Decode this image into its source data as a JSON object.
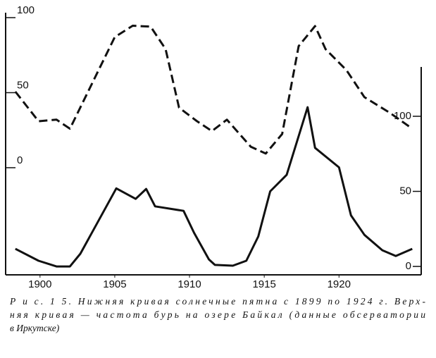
{
  "chart_data": {
    "type": "line",
    "xlim": [
      1897.7,
      1925.5
    ],
    "xticks": [
      1900,
      1905,
      1910,
      1915,
      1920
    ],
    "ylim": [
      -71.4,
      103.3
    ],
    "yticks": [
      0,
      50,
      100
    ],
    "y2lim": [
      -5.6,
      169
    ],
    "y2ticks": [
      0,
      50,
      100
    ],
    "series": [
      {
        "color": "#111111",
        "dash": true,
        "x": [
          1898.35,
          1899.9,
          1901.1,
          1902.0,
          1905.0,
          1906.2,
          1907.4,
          1908.4,
          1909.3,
          1910.5,
          1911.5,
          1912.5,
          1914.1,
          1915.1,
          1916.2,
          1917.3,
          1918.4,
          1919.1,
          1920.5,
          1921.7,
          1923.4,
          1924.9
        ],
        "values": [
          50.7,
          31,
          32,
          26,
          87,
          94.6,
          94,
          79,
          40,
          31,
          24.4,
          32,
          14,
          9.4,
          22.5,
          81,
          94.4,
          79,
          65,
          47,
          36.6,
          26
        ]
      },
      {
        "color": "#111111",
        "dash": false,
        "axis": "y2",
        "x": [
          1898.35,
          1899.9,
          1901.1,
          1902.0,
          1902.7,
          1905.1,
          1906.4,
          1907.1,
          1907.7,
          1909.6,
          1910.3,
          1911.3,
          1911.7,
          1912.9,
          1913.8,
          1914.6,
          1915.4,
          1916.5,
          1917.9,
          1918.4,
          1920.0,
          1920.8,
          1921.7,
          1922.9,
          1923.8,
          1924.9
        ],
        "values": [
          11.7,
          3.8,
          0,
          0,
          8.5,
          52,
          45,
          51.6,
          40,
          37,
          22.5,
          4.7,
          1,
          0.5,
          3.8,
          20,
          50,
          61,
          106,
          79,
          66,
          34,
          21,
          10.8,
          7,
          11.7
        ]
      }
    ],
    "caption": [
      "Р и с. 1 5. Нижняя кривая    солнечные пятна с 1899 по 1924 г. Верх-",
      "няя кривая — частота бурь на озере Байкал (данные обсерватории",
      "в Иркутске)"
    ]
  }
}
